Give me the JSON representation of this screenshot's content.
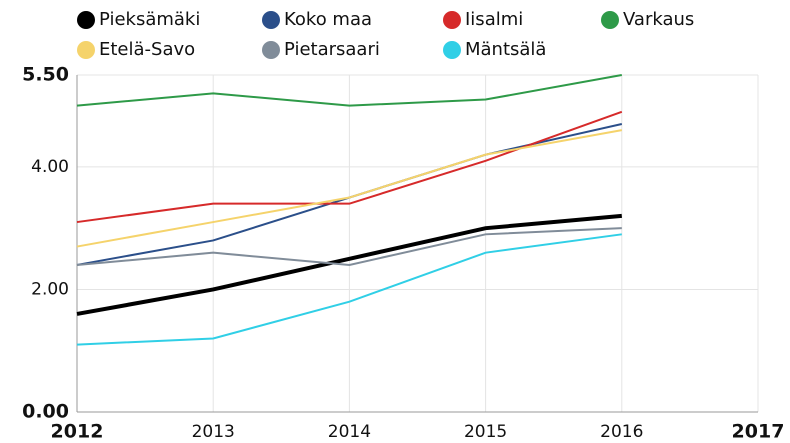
{
  "chart_data": {
    "type": "line",
    "x": [
      2012,
      2013,
      2014,
      2015,
      2016
    ],
    "series": [
      {
        "name": "Pieksämäki",
        "color": "#000000",
        "values": [
          1.6,
          2.0,
          2.5,
          3.0,
          3.2
        ]
      },
      {
        "name": "Koko maa",
        "color": "#2b4f8a",
        "values": [
          2.4,
          2.8,
          3.5,
          4.2,
          4.7
        ]
      },
      {
        "name": "Iisalmi",
        "color": "#d62a2a",
        "values": [
          3.1,
          3.4,
          3.4,
          4.1,
          4.9
        ]
      },
      {
        "name": "Varkaus",
        "color": "#2e9a48",
        "values": [
          5.0,
          5.2,
          5.0,
          5.1,
          5.5
        ]
      },
      {
        "name": "Etelä-Savo",
        "color": "#f5d36b",
        "values": [
          2.7,
          3.1,
          3.5,
          4.2,
          4.6
        ]
      },
      {
        "name": "Pietarsaari",
        "color": "#808c99",
        "values": [
          2.4,
          2.6,
          2.4,
          2.9,
          3.0
        ]
      },
      {
        "name": "Mäntsälä",
        "color": "#30cfe6",
        "values": [
          1.1,
          1.2,
          1.8,
          2.6,
          2.9
        ]
      }
    ],
    "xlim": [
      2012,
      2017
    ],
    "xticks": [
      2012,
      2013,
      2014,
      2015,
      2016,
      2017
    ],
    "ylim": [
      0,
      5.5
    ],
    "yticks": [
      {
        "value": 0,
        "label": "0.00"
      },
      {
        "value": 2,
        "label": "2.00"
      },
      {
        "value": 4,
        "label": "4.00"
      },
      {
        "value": 5.5,
        "label": "5.50"
      }
    ],
    "grid": true
  }
}
